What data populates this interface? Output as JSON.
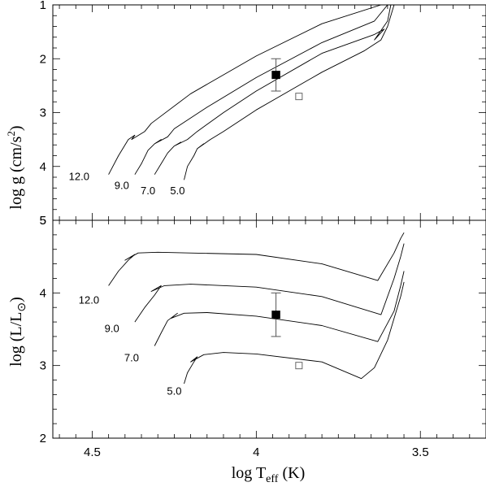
{
  "chart_data": [
    {
      "panel": "top",
      "type": "line",
      "ylabel_parts": {
        "prefix": "log g  (cm/s",
        "sup": "2",
        "suffix": ")"
      },
      "xlim": [
        4.62,
        3.3
      ],
      "ylim": [
        5,
        1
      ],
      "x_ticks": [
        4.5,
        4,
        3.5
      ],
      "y_ticks": [
        1,
        2,
        3,
        4,
        5
      ],
      "y_tick_labels": [
        "1",
        "2",
        "3",
        "4",
        "5"
      ],
      "series": [
        {
          "name": "12.0",
          "label": "12.0",
          "x": [
            4.45,
            4.42,
            4.39,
            4.37,
            4.38,
            4.34,
            4.32,
            4.2,
            4.0,
            3.8,
            3.62
          ],
          "y": [
            4.15,
            3.8,
            3.5,
            3.42,
            3.5,
            3.35,
            3.2,
            2.65,
            1.95,
            1.35,
            1.0
          ]
        },
        {
          "name": "9.0",
          "label": "9.0",
          "x": [
            4.37,
            4.35,
            4.33,
            4.31,
            4.29,
            4.31,
            4.27,
            4.25,
            4.15,
            4.0,
            3.8,
            3.64,
            3.6
          ],
          "y": [
            4.15,
            3.95,
            3.7,
            3.58,
            3.5,
            3.58,
            3.45,
            3.3,
            2.9,
            2.35,
            1.7,
            1.3,
            1.0
          ]
        },
        {
          "name": "7.0",
          "label": "7.0",
          "x": [
            4.31,
            4.29,
            4.27,
            4.25,
            4.23,
            4.25,
            4.21,
            4.18,
            4.1,
            4.0,
            3.8,
            3.64,
            3.61,
            3.64,
            3.6,
            3.59
          ],
          "y": [
            4.15,
            3.95,
            3.75,
            3.62,
            3.55,
            3.62,
            3.5,
            3.35,
            3.0,
            2.6,
            1.9,
            1.55,
            1.45,
            1.65,
            1.3,
            1.0
          ]
        },
        {
          "name": "5.0",
          "label": "5.0",
          "x": [
            4.22,
            4.21,
            4.19,
            4.18,
            4.16,
            4.18,
            4.14,
            4.1,
            4.0,
            3.8,
            3.67,
            3.62,
            3.6,
            3.59,
            3.58
          ],
          "y": [
            4.25,
            4.0,
            3.8,
            3.67,
            3.58,
            3.67,
            3.5,
            3.35,
            2.95,
            2.25,
            1.85,
            1.65,
            1.4,
            1.2,
            1.0
          ]
        }
      ],
      "points": [
        {
          "style": "filled",
          "x": 3.94,
          "y": 2.3,
          "xerr": 0.012,
          "yerr": 0.3
        },
        {
          "style": "open",
          "x": 3.87,
          "y": 2.7
        }
      ],
      "label_positions": [
        {
          "text": "12.0",
          "x": 4.54,
          "y": 4.25
        },
        {
          "text": "9.0",
          "x": 4.41,
          "y": 4.42
        },
        {
          "text": "7.0",
          "x": 4.33,
          "y": 4.52
        },
        {
          "text": "5.0",
          "x": 4.24,
          "y": 4.52
        }
      ]
    },
    {
      "panel": "bottom",
      "type": "line",
      "ylabel_parts": {
        "prefix": "log (L/L",
        "sub": "⊙",
        "suffix": ")"
      },
      "xlabel_parts": {
        "prefix": "log T",
        "sub": "eff",
        "suffix": "  (K)"
      },
      "xlim": [
        4.62,
        3.3
      ],
      "ylim": [
        2,
        5
      ],
      "x_ticks": [
        4.5,
        4,
        3.5
      ],
      "x_tick_labels": [
        "4.5",
        "4",
        "3.5"
      ],
      "y_ticks": [
        2,
        3,
        4,
        5
      ],
      "y_tick_labels": [
        "2",
        "3",
        "4",
        "5"
      ],
      "series": [
        {
          "name": "12.0",
          "label": "12.0",
          "x": [
            4.45,
            4.42,
            4.39,
            4.37,
            4.4,
            4.36,
            4.3,
            4.0,
            3.8,
            3.63,
            3.58,
            3.56,
            3.55
          ],
          "y": [
            4.1,
            4.3,
            4.45,
            4.53,
            4.45,
            4.55,
            4.56,
            4.53,
            4.4,
            4.17,
            4.55,
            4.75,
            4.83
          ],
          "bold": true
        },
        {
          "name": "9.0",
          "label": "9.0",
          "x": [
            4.37,
            4.34,
            4.31,
            4.29,
            4.32,
            4.28,
            4.2,
            4.0,
            3.8,
            3.62,
            3.58,
            3.56,
            3.55
          ],
          "y": [
            3.6,
            3.8,
            3.97,
            4.1,
            4.02,
            4.1,
            4.12,
            4.08,
            3.95,
            3.7,
            4.2,
            4.5,
            4.68
          ]
        },
        {
          "name": "7.0",
          "label": "7.0",
          "x": [
            4.31,
            4.29,
            4.27,
            4.24,
            4.26,
            4.22,
            4.15,
            4.0,
            3.8,
            3.63,
            3.58,
            3.56,
            3.55
          ],
          "y": [
            3.27,
            3.45,
            3.62,
            3.72,
            3.65,
            3.72,
            3.73,
            3.68,
            3.55,
            3.33,
            3.75,
            4.1,
            4.3
          ]
        },
        {
          "name": "5.0",
          "label": "5.0",
          "x": [
            4.22,
            4.21,
            4.19,
            4.18,
            4.2,
            4.16,
            4.1,
            4.0,
            3.8,
            3.68,
            3.64,
            3.6,
            3.58,
            3.56,
            3.55
          ],
          "y": [
            2.75,
            2.9,
            3.05,
            3.12,
            3.05,
            3.15,
            3.18,
            3.16,
            3.05,
            2.82,
            2.97,
            3.35,
            3.65,
            3.95,
            4.15
          ]
        }
      ],
      "points": [
        {
          "style": "filled",
          "x": 3.94,
          "y": 3.7,
          "xerr": 0.012,
          "yerr": 0.3
        },
        {
          "style": "open",
          "x": 3.87,
          "y": 3.0
        }
      ],
      "label_positions": [
        {
          "text": "12.0",
          "x": 4.51,
          "y": 3.85
        },
        {
          "text": "9.0",
          "x": 4.44,
          "y": 3.46
        },
        {
          "text": "7.0",
          "x": 4.38,
          "y": 3.06
        },
        {
          "text": "5.0",
          "x": 4.25,
          "y": 2.6
        }
      ]
    }
  ]
}
